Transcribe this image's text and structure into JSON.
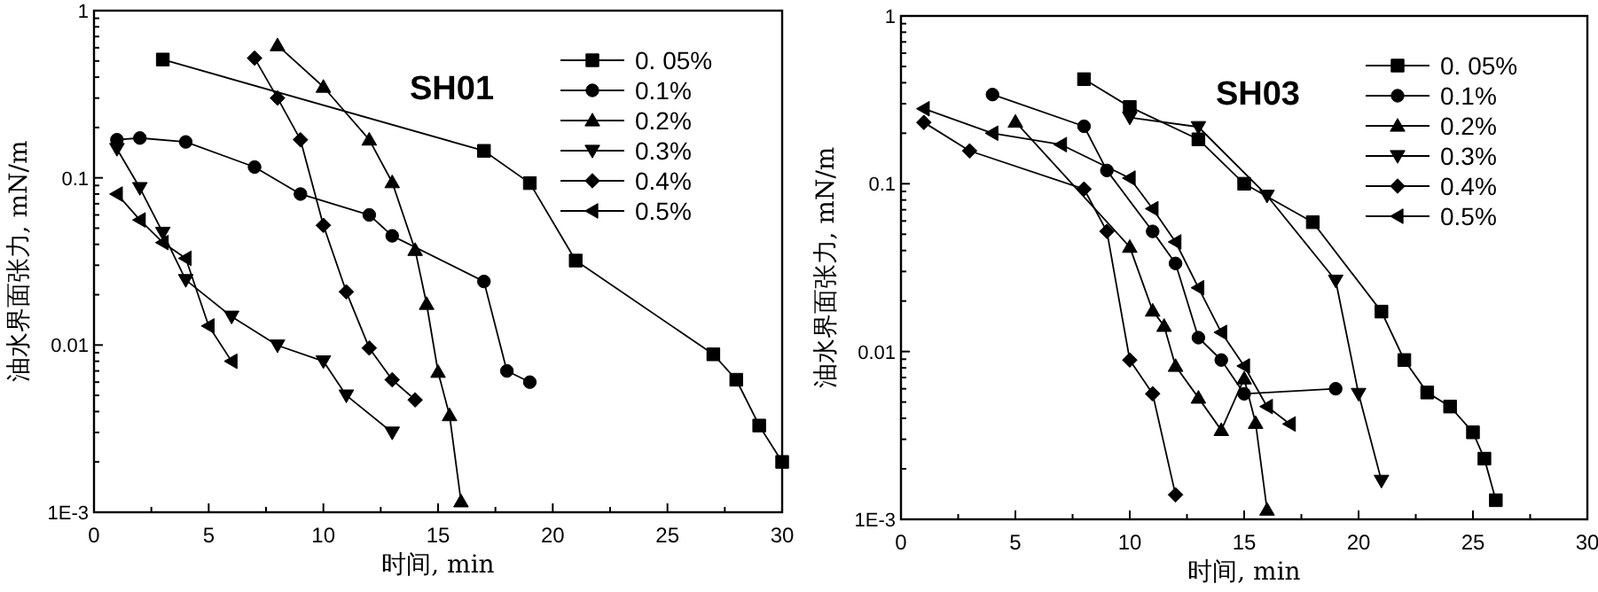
{
  "chart_data": [
    {
      "type": "line",
      "title": "SH01",
      "xlabel": "时间, min",
      "ylabel": "油水界面张力, mN/m",
      "log": "y",
      "xlim": [
        0,
        30
      ],
      "xticks": [
        0,
        5,
        10,
        15,
        20,
        25,
        30
      ],
      "ylim": [
        0.001,
        1
      ],
      "yticks": [
        {
          "value": 0.001,
          "label": "1E-3"
        },
        {
          "value": 0.01,
          "label": "0.01"
        },
        {
          "value": 0.1,
          "label": "0.1"
        },
        {
          "value": 1,
          "label": "1"
        }
      ],
      "legend": "top right",
      "grid": false,
      "line_style": "solid",
      "series": [
        {
          "name": "0. 05%",
          "color": "#000000",
          "marker": "square",
          "x": [
            3,
            17,
            19,
            21,
            27,
            28,
            29,
            30
          ],
          "values": [
            0.51,
            0.145,
            0.093,
            0.032,
            0.0088,
            0.0062,
            0.0033,
            0.002
          ]
        },
        {
          "name": "0.1%",
          "color": "#000000",
          "marker": "circle",
          "x": [
            1,
            2,
            4,
            7,
            9,
            12,
            13,
            17,
            18,
            19
          ],
          "values": [
            0.169,
            0.173,
            0.164,
            0.116,
            0.08,
            0.06,
            0.045,
            0.024,
            0.007,
            0.006
          ]
        },
        {
          "name": "0.2%",
          "color": "#000000",
          "marker": "triangle",
          "x": [
            8,
            10,
            12,
            13,
            14,
            14.5,
            15,
            15.5,
            16
          ],
          "values": [
            0.62,
            0.35,
            0.169,
            0.094,
            0.037,
            0.0176,
            0.0069,
            0.0038,
            0.00116
          ]
        },
        {
          "name": "0.3%",
          "color": "#000000",
          "marker": "triangle-down",
          "x": [
            1,
            2,
            3,
            4,
            6,
            8,
            10,
            11,
            13
          ],
          "values": [
            0.149,
            0.087,
            0.047,
            0.0245,
            0.0148,
            0.00995,
            0.008,
            0.005,
            0.003
          ]
        },
        {
          "name": "0.4%",
          "color": "#000000",
          "marker": "diamond",
          "x": [
            7,
            8,
            9,
            10,
            11,
            12,
            13,
            14
          ],
          "values": [
            0.52,
            0.3,
            0.169,
            0.052,
            0.0208,
            0.0096,
            0.0062,
            0.0047
          ]
        },
        {
          "name": "0.5%",
          "color": "#000000",
          "marker": "triangle-left",
          "x": [
            1,
            2,
            3,
            4,
            5,
            6
          ],
          "values": [
            0.08,
            0.056,
            0.041,
            0.033,
            0.013,
            0.008
          ]
        }
      ]
    },
    {
      "type": "line",
      "title": "SH03",
      "xlabel": "时间, min",
      "ylabel": "油水界面张力, mN/m",
      "log": "y",
      "xlim": [
        0,
        30
      ],
      "xticks": [
        0,
        5,
        10,
        15,
        20,
        25,
        30
      ],
      "ylim": [
        0.001,
        1
      ],
      "yticks": [
        {
          "value": 0.001,
          "label": "1E-3"
        },
        {
          "value": 0.01,
          "label": "0.01"
        },
        {
          "value": 0.1,
          "label": "0.1"
        },
        {
          "value": 1,
          "label": "1"
        }
      ],
      "legend": "top right",
      "grid": false,
      "line_style": "solid",
      "series": [
        {
          "name": "0. 05%",
          "color": "#000000",
          "marker": "square",
          "x": [
            8,
            10,
            13,
            15,
            18,
            21,
            22,
            23,
            24,
            25,
            25.5,
            26
          ],
          "values": [
            0.42,
            0.287,
            0.184,
            0.1,
            0.059,
            0.0173,
            0.0089,
            0.0057,
            0.0047,
            0.0033,
            0.0023,
            0.0013
          ]
        },
        {
          "name": "0.1%",
          "color": "#000000",
          "marker": "circle",
          "x": [
            4,
            8,
            9,
            11,
            12,
            13,
            14,
            15,
            19
          ],
          "values": [
            0.34,
            0.22,
            0.12,
            0.052,
            0.0335,
            0.0121,
            0.0089,
            0.0056,
            0.006
          ]
        },
        {
          "name": "0.2%",
          "color": "#000000",
          "marker": "triangle",
          "x": [
            5,
            10,
            11,
            11.5,
            12,
            13,
            14,
            15,
            15.5,
            16
          ],
          "values": [
            0.234,
            0.042,
            0.0175,
            0.0142,
            0.0082,
            0.0053,
            0.0034,
            0.0069,
            0.00375,
            0.00114
          ]
        },
        {
          "name": "0.3%",
          "color": "#000000",
          "marker": "triangle-down",
          "x": [
            10,
            13,
            16,
            19,
            20,
            21
          ],
          "values": [
            0.248,
            0.218,
            0.085,
            0.0265,
            0.0056,
            0.0017
          ]
        },
        {
          "name": "0.4%",
          "color": "#000000",
          "marker": "diamond",
          "x": [
            1,
            3,
            8,
            9,
            10,
            11,
            12
          ],
          "values": [
            0.232,
            0.157,
            0.093,
            0.052,
            0.0089,
            0.0056,
            0.0014
          ]
        },
        {
          "name": "0.5%",
          "color": "#000000",
          "marker": "triangle-left",
          "x": [
            1,
            4,
            7,
            10,
            11,
            12,
            13,
            14,
            15,
            16,
            17
          ],
          "values": [
            0.28,
            0.2,
            0.171,
            0.108,
            0.071,
            0.045,
            0.024,
            0.013,
            0.0082,
            0.0047,
            0.0037
          ]
        }
      ]
    }
  ]
}
